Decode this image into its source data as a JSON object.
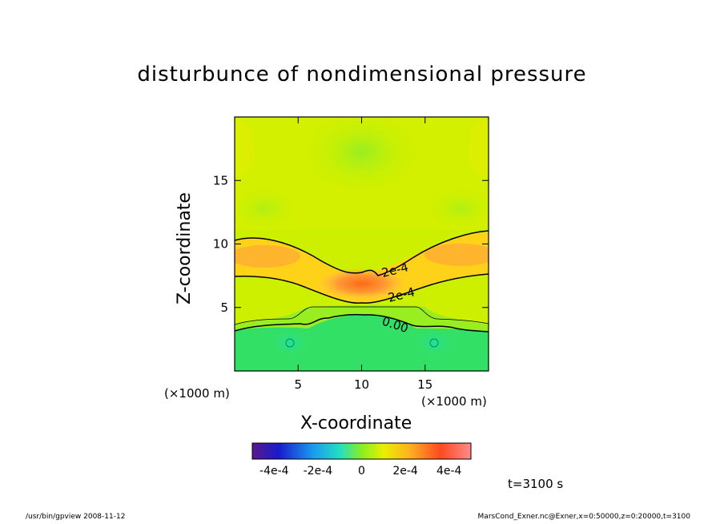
{
  "chart_data": {
    "type": "heatmap",
    "title": "disturbunce of nondimensional pressure",
    "xlabel": "X-coordinate",
    "ylabel": "Z-coordinate",
    "x_unit": "(×1000 m)",
    "y_unit": "(×1000 m)",
    "xlim": [
      0,
      20
    ],
    "ylim": [
      0,
      20
    ],
    "x_ticks": [
      5,
      10,
      15
    ],
    "y_ticks": [
      5,
      10,
      15
    ],
    "contours": [
      {
        "label": "2e-4",
        "value": 0.0002
      },
      {
        "label": "2e-4",
        "value": 0.0002
      },
      {
        "label": "0.00",
        "value": 0.0
      }
    ],
    "colorbar": {
      "range": [
        -0.0005,
        0.0005
      ],
      "tick_labels": [
        "-4e-4",
        "-2e-4",
        "0",
        "2e-4",
        "4e-4"
      ],
      "tick_values": [
        -0.0004,
        -0.0002,
        0,
        0.0002,
        0.0004
      ]
    },
    "time_label": "t=3100 s"
  },
  "footer": {
    "left": "/usr/bin/gpview   2008-11-12",
    "right": "MarsCond_Exner.nc@Exner,x=0:50000,z=0:20000,t=3100"
  },
  "colors": {
    "frame": "#000000",
    "contour": "#000000",
    "field_low": "#33e066",
    "field_mid": "#ccf000",
    "field_high": "#ff9933"
  }
}
